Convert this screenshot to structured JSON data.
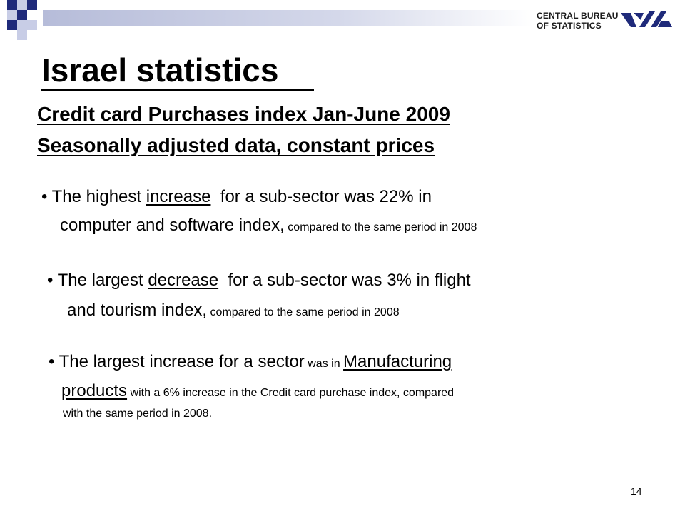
{
  "header": {
    "logo_line1": "CENTRAL BUREAU",
    "logo_line2": "OF STATISTICS",
    "accent_color": "#1f2a7a",
    "bar_color": "#b6bcd9"
  },
  "title": "Israel statistics",
  "subtitle": {
    "line1": "Credit card Purchases index Jan-June 2009",
    "line2": "Seasonally adjusted data, constant prices"
  },
  "bullets": [
    {
      "bullet": "•",
      "l1_a": " The highest ",
      "l1_u": "increase",
      "l1_b": "  for a sub-sector was 22% in",
      "l2_main": "computer and software index,",
      "l2_small": " compared to the same period in 2008"
    },
    {
      "bullet": "•",
      "l1_a": " The largest ",
      "l1_u": "decrease",
      "l1_b": "  for a sub-sector was 3% in flight",
      "l2_main": "and tourism index,",
      "l2_small": " compared to the same period in 2008"
    },
    {
      "bullet": "•",
      "l1_a": " The largest increase for a sector",
      "l1_small": " was in ",
      "l1_u": "Manufacturing",
      "l2_u": "products",
      "l2_small": " with a 6% increase in the Credit card purchase index, compared",
      "l3_small": "with the same period in 2008."
    }
  ],
  "page_number": "14"
}
